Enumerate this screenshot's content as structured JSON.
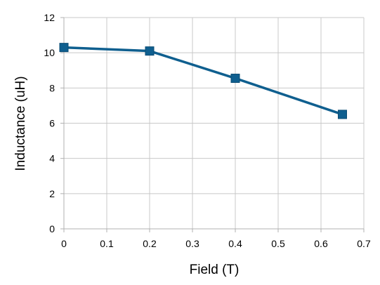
{
  "chart_data": {
    "type": "line",
    "title": "",
    "xlabel": "Field (T)",
    "ylabel": "Inductance (uH)",
    "xlim": [
      0,
      0.7
    ],
    "ylim": [
      0,
      12
    ],
    "x_ticks": [
      "0",
      "0.1",
      "0.2",
      "0.3",
      "0.4",
      "0.5",
      "0.6",
      "0.7"
    ],
    "y_ticks": [
      "0",
      "2",
      "4",
      "6",
      "8",
      "10",
      "12"
    ],
    "grid": true,
    "legend": "none",
    "series": [
      {
        "color": "#0f5f8f",
        "marker": "square",
        "x": [
          0,
          0.2,
          0.4,
          0.65
        ],
        "y": [
          10.3,
          10.1,
          8.55,
          6.5
        ]
      }
    ]
  }
}
